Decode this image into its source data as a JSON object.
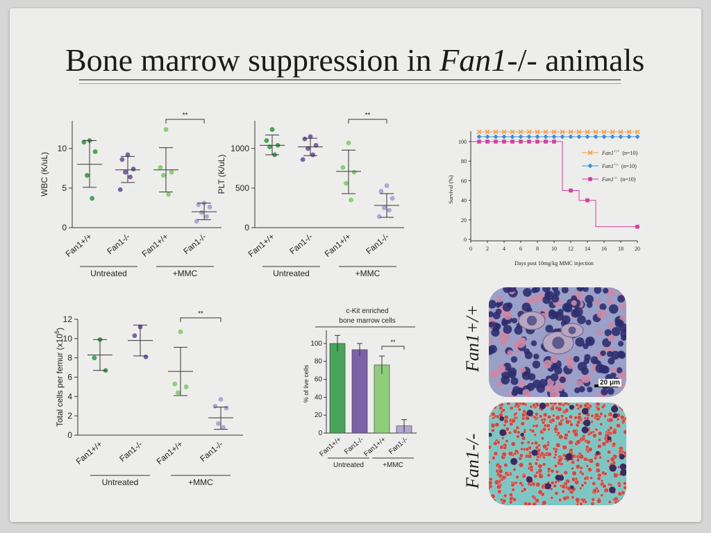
{
  "slide": {
    "title_main": "Bone marrow suppression in ",
    "title_italic": "Fan1",
    "title_tail": "-/- animals"
  },
  "colors": {
    "dark_green": "#4aa35a",
    "purple": "#7b62a6",
    "light_green": "#8fcd7b",
    "light_purple": "#b2a6d4",
    "orange": "#f39a40",
    "blue": "#3e8ed8",
    "magenta": "#d1409c"
  },
  "groups": {
    "categories": [
      "Fan1+/+",
      "Fan1-/-",
      "Fan1+/+",
      "Fan1-/-"
    ],
    "group_labels": [
      "Untreated",
      "+MMC"
    ]
  },
  "chart_data": [
    {
      "id": "wbc",
      "type": "scatter",
      "ylabel": "WBC (K/uL)",
      "yticks": [
        0,
        5,
        10
      ],
      "ylim": [
        0,
        13.5
      ],
      "significance": "**",
      "series": [
        {
          "points": [
            11.0,
            10.8,
            9.6,
            6.6,
            3.7
          ],
          "mean": 8.0,
          "sd_low": 5.1,
          "sd_high": 11.0
        },
        {
          "points": [
            9.2,
            8.6,
            7.4,
            7.0,
            6.4,
            4.8
          ],
          "mean": 7.3,
          "sd_low": 5.7,
          "sd_high": 9.0
        },
        {
          "points": [
            12.4,
            7.6,
            7.0,
            6.6,
            4.2
          ],
          "mean": 7.3,
          "sd_low": 4.5,
          "sd_high": 10.1
        },
        {
          "points": [
            3.1,
            2.9,
            2.6,
            1.9,
            1.4,
            0.8
          ],
          "mean": 2.0,
          "sd_low": 1.0,
          "sd_high": 3.1
        }
      ]
    },
    {
      "id": "plt",
      "type": "scatter",
      "ylabel": "PLT (K/uL)",
      "yticks": [
        0,
        500,
        1000
      ],
      "ylim": [
        0,
        1350
      ],
      "significance": "**",
      "series": [
        {
          "points": [
            1240,
            1100,
            1040,
            1020,
            920
          ],
          "mean": 1040,
          "sd_low": 920,
          "sd_high": 1170
        },
        {
          "points": [
            1150,
            1120,
            1040,
            1000,
            920,
            860
          ],
          "mean": 1020,
          "sd_low": 910,
          "sd_high": 1130
        },
        {
          "points": [
            1070,
            760,
            700,
            560,
            350
          ],
          "mean": 710,
          "sd_low": 430,
          "sd_high": 980
        },
        {
          "points": [
            530,
            460,
            370,
            250,
            220,
            140
          ],
          "mean": 280,
          "sd_low": 130,
          "sd_high": 430
        }
      ]
    },
    {
      "id": "survival",
      "type": "line",
      "xlabel": "Days post 10mg/kg MMC injection",
      "ylabel": "Survival (%)",
      "xticks": [
        0,
        2,
        4,
        6,
        8,
        10,
        12,
        14,
        16,
        18,
        20
      ],
      "yticks": [
        0,
        20,
        40,
        60,
        80,
        100
      ],
      "xlim": [
        0,
        20
      ],
      "ylim": [
        0,
        105
      ],
      "series": [
        {
          "name_italic": "Fan1",
          "name_sup": "+/+",
          "name_n": "(n=10)",
          "marker": "x",
          "x": [
            1,
            2,
            3,
            4,
            5,
            6,
            7,
            8,
            9,
            10,
            11,
            12,
            13,
            14,
            15,
            16,
            17,
            18,
            19,
            20
          ],
          "y": [
            110,
            110,
            110,
            110,
            110,
            110,
            110,
            110,
            110,
            110,
            110,
            110,
            110,
            110,
            110,
            110,
            110,
            110,
            110,
            110
          ]
        },
        {
          "name_italic": "Fan1",
          "name_sup": "+/-",
          "name_n": "(n=10)",
          "marker": "diamond",
          "x": [
            1,
            2,
            3,
            4,
            5,
            6,
            7,
            8,
            9,
            10,
            11,
            12,
            13,
            14,
            15,
            16,
            17,
            18,
            19,
            20
          ],
          "y": [
            105,
            105,
            105,
            105,
            105,
            105,
            105,
            105,
            105,
            105,
            105,
            105,
            105,
            105,
            105,
            105,
            105,
            105,
            105,
            105
          ]
        },
        {
          "name_italic": "Fan1",
          "name_sup": "-/-",
          "name_n": "(n=10)",
          "marker": "square",
          "x": [
            1,
            2,
            3,
            4,
            5,
            6,
            7,
            8,
            9,
            10,
            12,
            14,
            20
          ],
          "y": [
            100,
            100,
            100,
            100,
            100,
            100,
            100,
            100,
            100,
            100,
            50,
            40,
            13
          ],
          "steps": [
            [
              0,
              100
            ],
            [
              11,
              100
            ],
            [
              11,
              50
            ],
            [
              13,
              50
            ],
            [
              13,
              40
            ],
            [
              15,
              40
            ],
            [
              15,
              13
            ],
            [
              20,
              13
            ]
          ]
        }
      ]
    },
    {
      "id": "femur",
      "type": "scatter",
      "ylabel": "Total cells per femur (x10",
      "ylabel_sup": "6",
      "ylabel_tail": ")",
      "yticks": [
        0,
        2,
        4,
        6,
        8,
        10,
        12
      ],
      "ylim": [
        0,
        12
      ],
      "significance": "**",
      "series": [
        {
          "points": [
            9.9,
            8.0,
            6.7
          ],
          "mean": 8.3,
          "sd_low": 6.7,
          "sd_high": 9.9
        },
        {
          "points": [
            11.2,
            10.3,
            8.1
          ],
          "mean": 9.8,
          "sd_low": 8.2,
          "sd_high": 11.4
        },
        {
          "points": [
            10.7,
            5.3,
            5.0,
            4.4
          ],
          "mean": 6.6,
          "sd_low": 4.1,
          "sd_high": 9.1
        },
        {
          "points": [
            3.7,
            3.0,
            2.8,
            1.2,
            0.8
          ],
          "mean": 1.8,
          "sd_low": 0.6,
          "sd_high": 2.9
        }
      ]
    },
    {
      "id": "ckit",
      "type": "bar",
      "title_line1": "c-Kit enriched",
      "title_line2": "bone marrow cells",
      "ylabel": "% of live cells",
      "yticks": [
        0,
        20,
        40,
        60,
        80,
        100
      ],
      "ylim": [
        0,
        110
      ],
      "significance": "**",
      "values": [
        100,
        93,
        76,
        8
      ],
      "errors": [
        9,
        7,
        10,
        7
      ]
    }
  ],
  "micrographs": {
    "top_label": "Fan1+/+",
    "bottom_label": "Fan1-/-",
    "scale_bar": "20 μm"
  }
}
